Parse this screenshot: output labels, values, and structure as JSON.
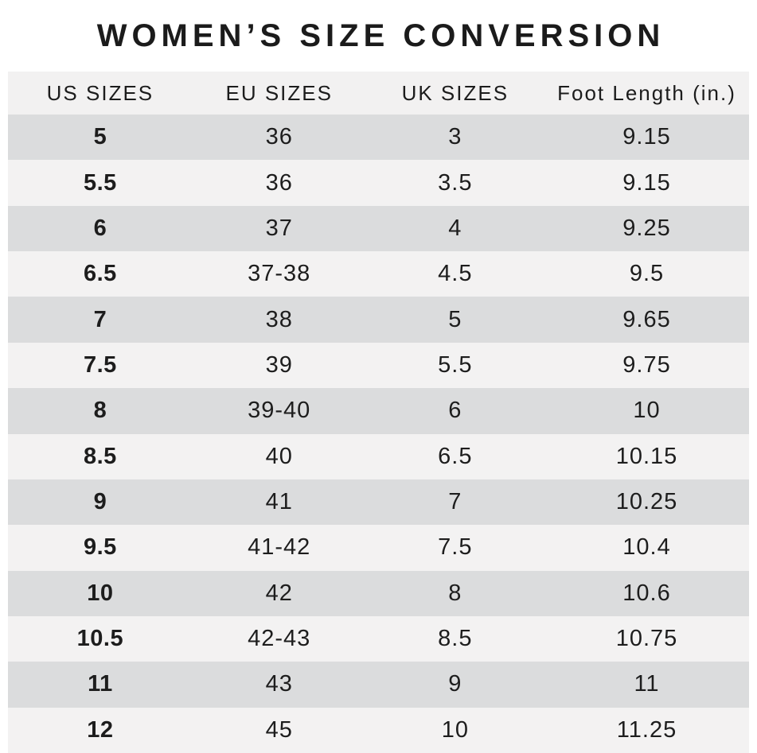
{
  "chart_data": {
    "type": "table",
    "title": "WOMEN’S SIZE CONVERSION",
    "columns": [
      "US SIZES",
      "EU SIZES",
      "UK SIZES",
      "Foot Length (in.)"
    ],
    "rows": [
      [
        "5",
        "36",
        "3",
        "9.15"
      ],
      [
        "5.5",
        "36",
        "3.5",
        "9.15"
      ],
      [
        "6",
        "37",
        "4",
        "9.25"
      ],
      [
        "6.5",
        "37-38",
        "4.5",
        "9.5"
      ],
      [
        "7",
        "38",
        "5",
        "9.65"
      ],
      [
        "7.5",
        "39",
        "5.5",
        "9.75"
      ],
      [
        "8",
        "39-40",
        "6",
        "10"
      ],
      [
        "8.5",
        "40",
        "6.5",
        "10.15"
      ],
      [
        "9",
        "41",
        "7",
        "10.25"
      ],
      [
        "9.5",
        "41-42",
        "7.5",
        "10.4"
      ],
      [
        "10",
        "42",
        "8",
        "10.6"
      ],
      [
        "10.5",
        "42-43",
        "8.5",
        "10.75"
      ],
      [
        "11",
        "43",
        "9",
        "11"
      ],
      [
        "12",
        "45",
        "10",
        "11.25"
      ]
    ]
  },
  "colors": {
    "page_bg": "#ffffff",
    "header_bg": "#f2f1f1",
    "row_dark": "#dbdcdd",
    "row_light": "#f3f2f2",
    "text": "#1d1d1d"
  }
}
